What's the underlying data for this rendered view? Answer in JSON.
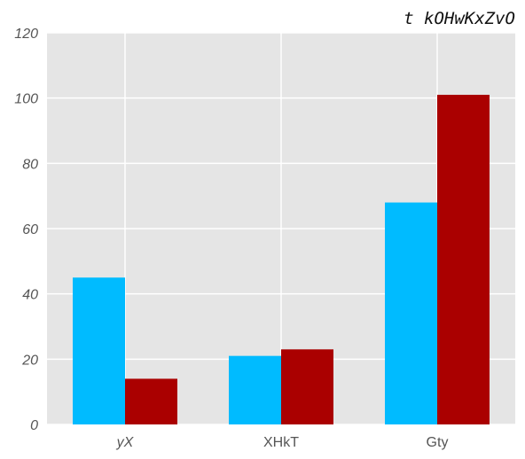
{
  "chart_data": {
    "type": "bar",
    "title": "t kOHwKxZvO",
    "xlabel": "",
    "ylabel": "",
    "categories": [
      "yX",
      "XHkT",
      "Gty"
    ],
    "category_italic": [
      true,
      false,
      false
    ],
    "series": [
      {
        "values": [
          45,
          21,
          68
        ],
        "color": "#00bbff"
      },
      {
        "values": [
          14,
          23,
          101
        ],
        "color": "#aa0000"
      }
    ],
    "ylim": [
      0,
      120
    ],
    "yticks": [
      0,
      20,
      40,
      60,
      80,
      100,
      120
    ],
    "grid": true,
    "background": "#e5e5e5",
    "grid_color": "#ffffff"
  }
}
